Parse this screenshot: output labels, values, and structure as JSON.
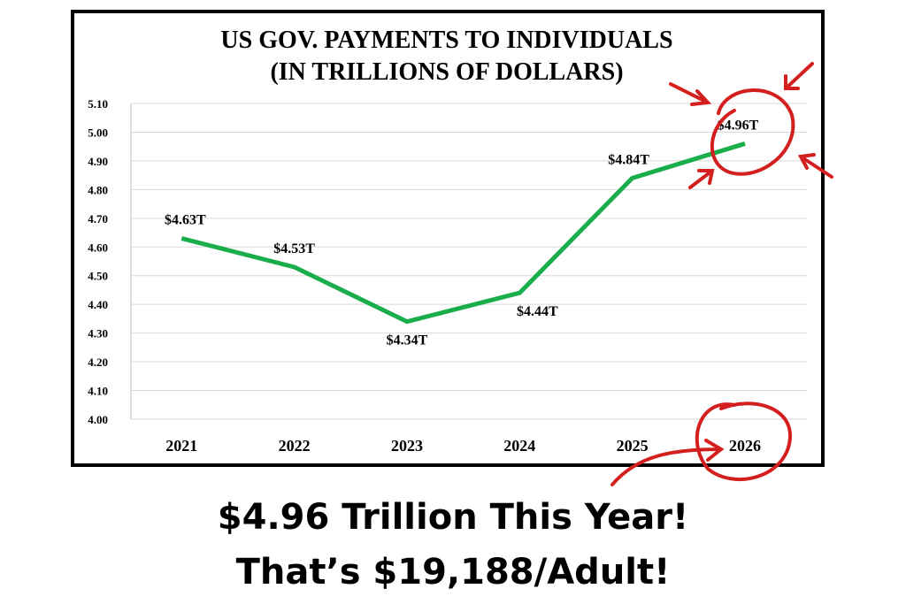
{
  "chart_data": {
    "type": "line",
    "title": [
      "US GOV. PAYMENTS TO INDIVIDUALS",
      "(IN TRILLIONS OF DOLLARS)"
    ],
    "categories": [
      "2021",
      "2022",
      "2023",
      "2024",
      "2025",
      "2026"
    ],
    "series": [
      {
        "color": "#1aad4b",
        "values": [
          4.63,
          4.53,
          4.34,
          4.44,
          4.84,
          4.96
        ],
        "value_labels": [
          "$4.63T",
          "$4.53T",
          "$4.34T",
          "$4.44T",
          "$4.84T",
          "$4.96T"
        ]
      }
    ],
    "ylim": [
      4.0,
      5.1
    ],
    "yticks": [
      {
        "value": 4.0,
        "label": "4.00"
      },
      {
        "value": 4.1,
        "label": "4.10"
      },
      {
        "value": 4.2,
        "label": "4.20"
      },
      {
        "value": 4.3,
        "label": "4.30"
      },
      {
        "value": 4.4,
        "label": "4.40"
      },
      {
        "value": 4.5,
        "label": "4.50"
      },
      {
        "value": 4.6,
        "label": "4.60"
      },
      {
        "value": 4.7,
        "label": "4.70"
      },
      {
        "value": 4.8,
        "label": "4.80"
      },
      {
        "value": 4.9,
        "label": "4.90"
      },
      {
        "value": 5.0,
        "label": "5.00"
      },
      {
        "value": 5.1,
        "label": "5.10"
      }
    ],
    "grid": true,
    "annotations": [
      "$4.96 Trillion This Year!",
      "That’s $19,188/Adult!"
    ]
  }
}
